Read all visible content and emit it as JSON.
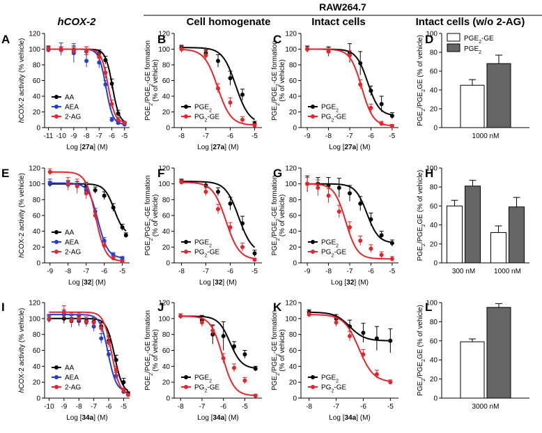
{
  "header": {
    "hcox2": "hCOX-2",
    "raw": "RAW264.7",
    "cell_homogenate": "Cell homogenate",
    "intact_cells": "Intact cells",
    "intact_wo": "Intact cells (w/o 2-AG)"
  },
  "colors": {
    "AA": "#000000",
    "AEA": "#1f3fd6",
    "2-AG": "#e8232a",
    "PGE2": "#000000",
    "PG2-GE": "#e8232a",
    "bar_white": "#ffffff",
    "bar_gray": "#666666"
  },
  "ylabels": {
    "cox": "hCOX-2 activity (% vehicle)",
    "pge_a": "PGE2/PGE2-GE formation",
    "pge_b": "(% of vehicle)",
    "bar": "PGE2/PGE2GE (% of vehicle)"
  },
  "chart_data": [
    {
      "panel": "A",
      "type": "line",
      "xlabel_pre": "Log [",
      "xlabel_comp": "27a",
      "xlabel_post": "] (M)",
      "xlim": [
        -11.3,
        -4.6
      ],
      "ylim": [
        0,
        120
      ],
      "xticks": [
        -11,
        -10,
        -9,
        -8,
        -7,
        -6,
        -5
      ],
      "yticks": [
        0,
        20,
        40,
        60,
        80,
        100,
        120
      ],
      "series": [
        {
          "name": "AA",
          "color": "#000000",
          "x": [
            -11,
            -10,
            -9,
            -8,
            -7,
            -6.5,
            -6,
            -5.5,
            -5
          ],
          "y": [
            100,
            99,
            99,
            97,
            95,
            86,
            56,
            18,
            5
          ],
          "err": [
            4,
            4,
            5,
            6,
            4,
            5,
            6,
            4,
            2
          ]
        },
        {
          "name": "AEA",
          "color": "#1f3fd6",
          "x": [
            -11,
            -10,
            -9,
            -8,
            -7,
            -6.5,
            -6,
            -5.5,
            -5
          ],
          "y": [
            99,
            100,
            95,
            85,
            83,
            55,
            10,
            6,
            4
          ],
          "err": [
            3,
            8,
            12,
            8,
            7,
            5,
            3,
            2,
            2
          ]
        },
        {
          "name": "2-AG",
          "color": "#e8232a",
          "x": [
            -11,
            -10,
            -9,
            -8,
            -7,
            -6.5,
            -6,
            -5.5,
            -5
          ],
          "y": [
            100,
            99,
            98,
            97,
            90,
            70,
            30,
            10,
            6
          ],
          "err": [
            3,
            4,
            4,
            6,
            5,
            7,
            5,
            3,
            2
          ]
        }
      ],
      "legend": [
        "AA",
        "AEA",
        "2-AG"
      ]
    },
    {
      "panel": "B",
      "type": "line",
      "xlabel_pre": "Log [",
      "xlabel_comp": "27a",
      "xlabel_post": "] (M)",
      "xlim": [
        -8.3,
        -4.7
      ],
      "ylim": [
        0,
        120
      ],
      "xticks": [
        -8,
        -7,
        -6,
        -5
      ],
      "yticks": [
        0,
        20,
        40,
        60,
        80,
        100,
        120
      ],
      "series": [
        {
          "name": "PGE2",
          "color": "#000000",
          "x": [
            -8,
            -7,
            -6.5,
            -6,
            -5.5,
            -5
          ],
          "y": [
            102,
            95,
            85,
            63,
            42,
            5
          ],
          "err": [
            3,
            4,
            8,
            9,
            7,
            3
          ]
        },
        {
          "name": "PG2-GE",
          "color": "#e8232a",
          "x": [
            -8,
            -7,
            -6.5,
            -6,
            -5.5,
            -5
          ],
          "y": [
            100,
            92,
            50,
            32,
            10,
            3
          ],
          "err": [
            4,
            6,
            6,
            6,
            4,
            2
          ]
        }
      ],
      "legend": [
        "PGE2",
        "PG2-GE"
      ]
    },
    {
      "panel": "C",
      "type": "line",
      "xlabel_pre": "Log [",
      "xlabel_comp": "27a",
      "xlabel_post": "] (M)",
      "xlim": [
        -9.3,
        -4.7
      ],
      "ylim": [
        0,
        120
      ],
      "xticks": [
        -9,
        -8,
        -7,
        -6,
        -5
      ],
      "yticks": [
        0,
        20,
        40,
        60,
        80,
        100,
        120
      ],
      "series": [
        {
          "name": "PGE2",
          "color": "#000000",
          "x": [
            -9,
            -8,
            -7,
            -6.5,
            -6,
            -5.5,
            -5
          ],
          "y": [
            100,
            97,
            95,
            82,
            47,
            30,
            15
          ],
          "err": [
            4,
            6,
            12,
            15,
            6,
            10,
            4
          ]
        },
        {
          "name": "PG2-GE",
          "color": "#e8232a",
          "x": [
            -9,
            -8,
            -7,
            -6.5,
            -6,
            -5.5,
            -5
          ],
          "y": [
            100,
            97,
            92,
            55,
            25,
            5,
            2
          ],
          "err": [
            3,
            5,
            6,
            6,
            5,
            3,
            2
          ]
        }
      ],
      "legend": [
        "PGE2",
        "PG2-GE"
      ]
    },
    {
      "panel": "D",
      "type": "bar",
      "xlabel": "1000 nM",
      "ylim": [
        0,
        100
      ],
      "yticks": [
        0,
        20,
        40,
        60,
        80,
        100
      ],
      "groups": [
        "1000 nM"
      ],
      "series": [
        {
          "name": "PGE2-GE",
          "color": "#ffffff",
          "values": [
            45
          ],
          "err": [
            6
          ]
        },
        {
          "name": "PGE2",
          "color": "#666666",
          "values": [
            68
          ],
          "err": [
            9
          ]
        }
      ],
      "legend": [
        "PGE2-GE",
        "PGE2"
      ]
    },
    {
      "panel": "E",
      "type": "line",
      "xlabel_pre": "Log [",
      "xlabel_comp": "32",
      "xlabel_post": "] (M)",
      "xlim": [
        -9.3,
        -4.6
      ],
      "ylim": [
        0,
        120
      ],
      "xticks": [
        -9,
        -8,
        -7,
        -6,
        -5
      ],
      "yticks": [
        0,
        20,
        40,
        60,
        80,
        100,
        120
      ],
      "series": [
        {
          "name": "AA",
          "color": "#000000",
          "x": [
            -9,
            -8,
            -7.5,
            -7,
            -6.5,
            -6,
            -5.5,
            -5,
            -4.8
          ],
          "y": [
            100,
            100,
            99,
            97,
            92,
            85,
            70,
            45,
            35
          ],
          "err": [
            3,
            4,
            4,
            5,
            4,
            5,
            5,
            4,
            3
          ]
        },
        {
          "name": "AEA",
          "color": "#1f3fd6",
          "x": [
            -9,
            -8,
            -7.5,
            -7,
            -6.5,
            -6,
            -5.5,
            -5
          ],
          "y": [
            101,
            99,
            98,
            92,
            65,
            28,
            10,
            6
          ],
          "err": [
            5,
            4,
            3,
            5,
            4,
            4,
            3,
            2
          ]
        },
        {
          "name": "2-AG",
          "color": "#e8232a",
          "x": [
            -9,
            -8,
            -7.5,
            -7,
            -6.5,
            -6,
            -5.5,
            -5
          ],
          "y": [
            115,
            100,
            97,
            88,
            60,
            22,
            6,
            2
          ],
          "err": [
            4,
            8,
            9,
            7,
            5,
            4,
            3,
            2
          ]
        }
      ],
      "legend": [
        "AA",
        "AEA",
        "2-AG"
      ]
    },
    {
      "panel": "F",
      "type": "line",
      "xlabel_pre": "Log [",
      "xlabel_comp": "32",
      "xlabel_post": "] (M)",
      "xlim": [
        -8.3,
        -4.7
      ],
      "ylim": [
        0,
        120
      ],
      "xticks": [
        -8,
        -7,
        -6,
        -5
      ],
      "yticks": [
        0,
        20,
        40,
        60,
        80,
        100,
        120
      ],
      "series": [
        {
          "name": "PGE2",
          "color": "#000000",
          "x": [
            -8,
            -7,
            -6.5,
            -6,
            -5.5,
            -5
          ],
          "y": [
            103,
            98,
            90,
            75,
            50,
            12
          ],
          "err": [
            3,
            4,
            5,
            8,
            9,
            4
          ]
        },
        {
          "name": "PG2-GE",
          "color": "#e8232a",
          "x": [
            -8,
            -7,
            -6.5,
            -6,
            -5.5,
            -5
          ],
          "y": [
            102,
            90,
            68,
            45,
            20,
            4
          ],
          "err": [
            3,
            5,
            6,
            6,
            5,
            2
          ]
        }
      ],
      "legend": [
        "PGE2",
        "PG2-GE"
      ]
    },
    {
      "panel": "G",
      "type": "line",
      "xlabel_pre": "Log [",
      "xlabel_comp": "32",
      "xlabel_post": "] (M)",
      "xlim": [
        -9.3,
        -4.7
      ],
      "ylim": [
        0,
        120
      ],
      "xticks": [
        -9,
        -8,
        -7,
        -6,
        -5
      ],
      "yticks": [
        0,
        20,
        40,
        60,
        80,
        100,
        120
      ],
      "series": [
        {
          "name": "PGE2",
          "color": "#000000",
          "x": [
            -9,
            -8.5,
            -8,
            -7.5,
            -7,
            -6.5,
            -6,
            -5.5,
            -5
          ],
          "y": [
            100,
            100,
            98,
            95,
            88,
            75,
            55,
            35,
            25
          ],
          "err": [
            10,
            8,
            10,
            12,
            10,
            9,
            8,
            5,
            4
          ]
        },
        {
          "name": "PG2-GE",
          "color": "#e8232a",
          "x": [
            -9,
            -8.5,
            -8,
            -7.5,
            -7,
            -6.5,
            -6,
            -5.5,
            -5
          ],
          "y": [
            100,
            95,
            85,
            65,
            45,
            28,
            18,
            10,
            5
          ],
          "err": [
            8,
            10,
            9,
            8,
            7,
            6,
            5,
            4,
            3
          ]
        }
      ],
      "legend": [
        "PGE2",
        "PG2-GE"
      ]
    },
    {
      "panel": "H",
      "type": "bar",
      "ylim": [
        0,
        100
      ],
      "yticks": [
        0,
        20,
        40,
        60,
        80,
        100
      ],
      "groups": [
        "300 nM",
        "1000 nM"
      ],
      "series": [
        {
          "name": "PGE2-GE",
          "color": "#ffffff",
          "values": [
            60,
            32
          ],
          "err": [
            6,
            7
          ]
        },
        {
          "name": "PGE2",
          "color": "#666666",
          "values": [
            81,
            59
          ],
          "err": [
            6,
            10
          ]
        }
      ]
    },
    {
      "panel": "I",
      "type": "line",
      "xlabel_pre": "Log [",
      "xlabel_comp": "34a",
      "xlabel_post": "] (M)",
      "xlim": [
        -10.3,
        -4.6
      ],
      "ylim": [
        0,
        120
      ],
      "xticks": [
        -10,
        -9,
        -8,
        -7,
        -6,
        -5
      ],
      "yticks": [
        0,
        20,
        40,
        60,
        80,
        100,
        120
      ],
      "series": [
        {
          "name": "AA",
          "color": "#000000",
          "x": [
            -10,
            -9,
            -8.5,
            -8,
            -7.5,
            -7,
            -6.5,
            -6,
            -5.5,
            -5,
            -4.7
          ],
          "y": [
            100,
            100,
            97,
            97,
            97,
            96,
            90,
            72,
            48,
            20,
            6
          ],
          "err": [
            5,
            6,
            7,
            6,
            5,
            5,
            5,
            6,
            6,
            5,
            2
          ]
        },
        {
          "name": "AEA",
          "color": "#1f3fd6",
          "x": [
            -10,
            -9,
            -8.5,
            -8,
            -7.5,
            -7,
            -6.5,
            -6,
            -5.5,
            -5
          ],
          "y": [
            99,
            105,
            100,
            98,
            95,
            90,
            75,
            55,
            28,
            8
          ],
          "err": [
            4,
            6,
            8,
            6,
            5,
            6,
            6,
            5,
            4,
            2
          ]
        },
        {
          "name": "2-AG",
          "color": "#e8232a",
          "x": [
            -10,
            -9,
            -8.5,
            -8,
            -7.5,
            -7,
            -6.5,
            -6,
            -5.5,
            -5,
            -4.7
          ],
          "y": [
            100,
            108,
            98,
            100,
            96,
            95,
            88,
            70,
            35,
            10,
            4
          ],
          "err": [
            4,
            8,
            9,
            7,
            6,
            6,
            6,
            6,
            5,
            3,
            2
          ]
        }
      ],
      "legend": [
        "AA",
        "AEA",
        "2-AG"
      ]
    },
    {
      "panel": "J",
      "type": "line",
      "xlabel_pre": "Log [",
      "xlabel_comp": "34a",
      "xlabel_post": "] (M)",
      "xlim": [
        -8.3,
        -4.2
      ],
      "ylim": [
        0,
        120
      ],
      "xticks": [
        -8,
        -7,
        -6,
        -5
      ],
      "yticks": [
        0,
        20,
        40,
        60,
        80,
        100,
        120
      ],
      "series": [
        {
          "name": "PGE2",
          "color": "#000000",
          "x": [
            -8,
            -7,
            -6.5,
            -6,
            -5.5,
            -5,
            -4.5
          ],
          "y": [
            103,
            98,
            80,
            78,
            65,
            55,
            37
          ],
          "err": [
            3,
            6,
            12,
            18,
            6,
            5,
            3
          ]
        },
        {
          "name": "PG2-GE",
          "color": "#e8232a",
          "x": [
            -8,
            -7,
            -6.5,
            -6,
            -5.5,
            -5,
            -4.5
          ],
          "y": [
            103,
            95,
            85,
            50,
            38,
            22,
            3
          ],
          "err": [
            3,
            5,
            6,
            6,
            5,
            4,
            2
          ]
        }
      ],
      "legend": [
        "PGE2",
        "PG2-GE"
      ]
    },
    {
      "panel": "K",
      "type": "line",
      "xlabel_pre": "Log [",
      "xlabel_comp": "34a",
      "xlabel_post": "] (M)",
      "xlim": [
        -8.3,
        -4.7
      ],
      "ylim": [
        0,
        120
      ],
      "xticks": [
        -8,
        -7,
        -6,
        -5
      ],
      "yticks": [
        0,
        20,
        40,
        60,
        80,
        100,
        120
      ],
      "series": [
        {
          "name": "PGE2",
          "color": "#000000",
          "x": [
            -8,
            -7,
            -6.5,
            -6,
            -5.5,
            -5
          ],
          "y": [
            108,
            100,
            90,
            82,
            75,
            72
          ],
          "err": [
            3,
            5,
            8,
            12,
            15,
            15
          ]
        },
        {
          "name": "PG2-GE",
          "color": "#e8232a",
          "x": [
            -8,
            -7,
            -6.5,
            -6,
            -5.5,
            -5
          ],
          "y": [
            105,
            95,
            78,
            55,
            30,
            20
          ],
          "err": [
            3,
            5,
            6,
            6,
            5,
            3
          ]
        }
      ],
      "legend": [
        "PGE2",
        "PG2-GE"
      ]
    },
    {
      "panel": "L",
      "type": "bar",
      "xlabel": "3000 nM",
      "ylim": [
        0,
        100
      ],
      "yticks": [
        0,
        20,
        40,
        60,
        80,
        100
      ],
      "groups": [
        "3000 nM"
      ],
      "series": [
        {
          "name": "PGE2-GE",
          "color": "#ffffff",
          "values": [
            59
          ],
          "err": [
            3
          ]
        },
        {
          "name": "PGE2",
          "color": "#666666",
          "values": [
            95
          ],
          "err": [
            4
          ]
        }
      ]
    }
  ]
}
